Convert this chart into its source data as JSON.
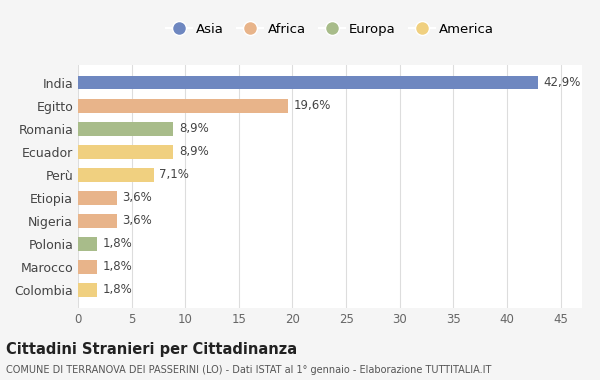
{
  "countries": [
    "India",
    "Egitto",
    "Romania",
    "Ecuador",
    "Perù",
    "Etiopia",
    "Nigeria",
    "Polonia",
    "Marocco",
    "Colombia"
  ],
  "values": [
    42.9,
    19.6,
    8.9,
    8.9,
    7.1,
    3.6,
    3.6,
    1.8,
    1.8,
    1.8
  ],
  "labels": [
    "42,9%",
    "19,6%",
    "8,9%",
    "8,9%",
    "7,1%",
    "3,6%",
    "3,6%",
    "1,8%",
    "1,8%",
    "1,8%"
  ],
  "continents": [
    "Asia",
    "Africa",
    "Europa",
    "America",
    "America",
    "Africa",
    "Africa",
    "Europa",
    "Africa",
    "America"
  ],
  "colors": {
    "Asia": "#6e87c0",
    "Africa": "#e8b48a",
    "Europa": "#a8bc8a",
    "America": "#f0d080"
  },
  "legend_order": [
    "Asia",
    "Africa",
    "Europa",
    "America"
  ],
  "xlim": [
    0,
    47
  ],
  "xticks": [
    0,
    5,
    10,
    15,
    20,
    25,
    30,
    35,
    40,
    45
  ],
  "title": "Cittadini Stranieri per Cittadinanza",
  "subtitle": "COMUNE DI TERRANOVA DEI PASSERINI (LO) - Dati ISTAT al 1° gennaio - Elaborazione TUTTITALIA.IT",
  "bg_color": "#f5f5f5",
  "bar_bg_color": "#ffffff",
  "grid_color": "#dddddd"
}
